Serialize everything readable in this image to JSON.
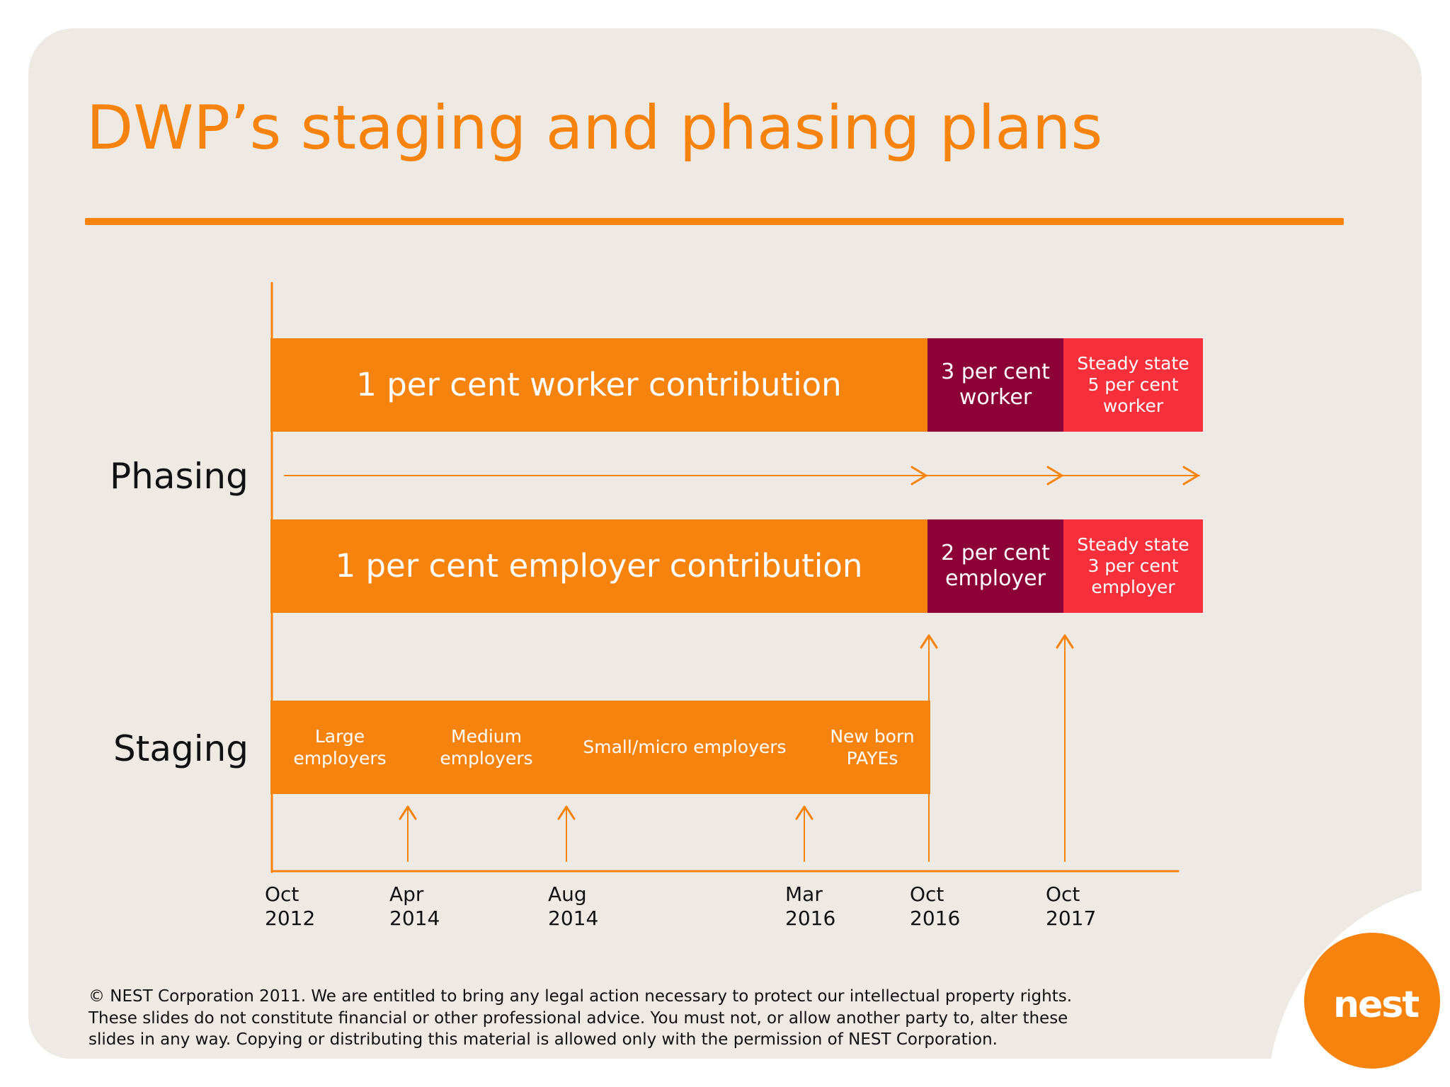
{
  "title": "DWP’s staging and phasing plans",
  "labels": {
    "phasing": "Phasing",
    "staging": "Staging"
  },
  "phasing": {
    "worker": {
      "base": "1 per cent worker contribution",
      "step2": "3 per cent worker",
      "steady": "Steady state 5 per cent worker"
    },
    "employer": {
      "base": "1 per cent employer contribution",
      "step2": "2 per cent employer",
      "steady": "Steady state 3 per cent employer"
    }
  },
  "staging": {
    "segments": [
      "Large employers",
      "Medium employers",
      "Small/micro employers",
      "New born PAYEs"
    ]
  },
  "timeline": [
    {
      "month": "Oct",
      "year": "2012"
    },
    {
      "month": "Apr",
      "year": "2014"
    },
    {
      "month": "Aug",
      "year": "2014"
    },
    {
      "month": "Mar",
      "year": "2016"
    },
    {
      "month": "Oct",
      "year": "2016"
    },
    {
      "month": "Oct",
      "year": "2017"
    }
  ],
  "footer": {
    "line1": "© NEST Corporation 2011. We are entitled to bring any legal action necessary to protect our intellectual property rights.",
    "line2": "These slides do not constitute financial or other professional advice. You must not, or allow another party to, alter these",
    "line3": "slides in any way. Copying or distributing this material is allowed only with the permission of NEST Corporation."
  },
  "logo": {
    "text": "nest"
  },
  "colors": {
    "accent": "#f7830f",
    "maroon": "#8c0236",
    "red": "#f72f3a",
    "background": "#efe9e4"
  }
}
